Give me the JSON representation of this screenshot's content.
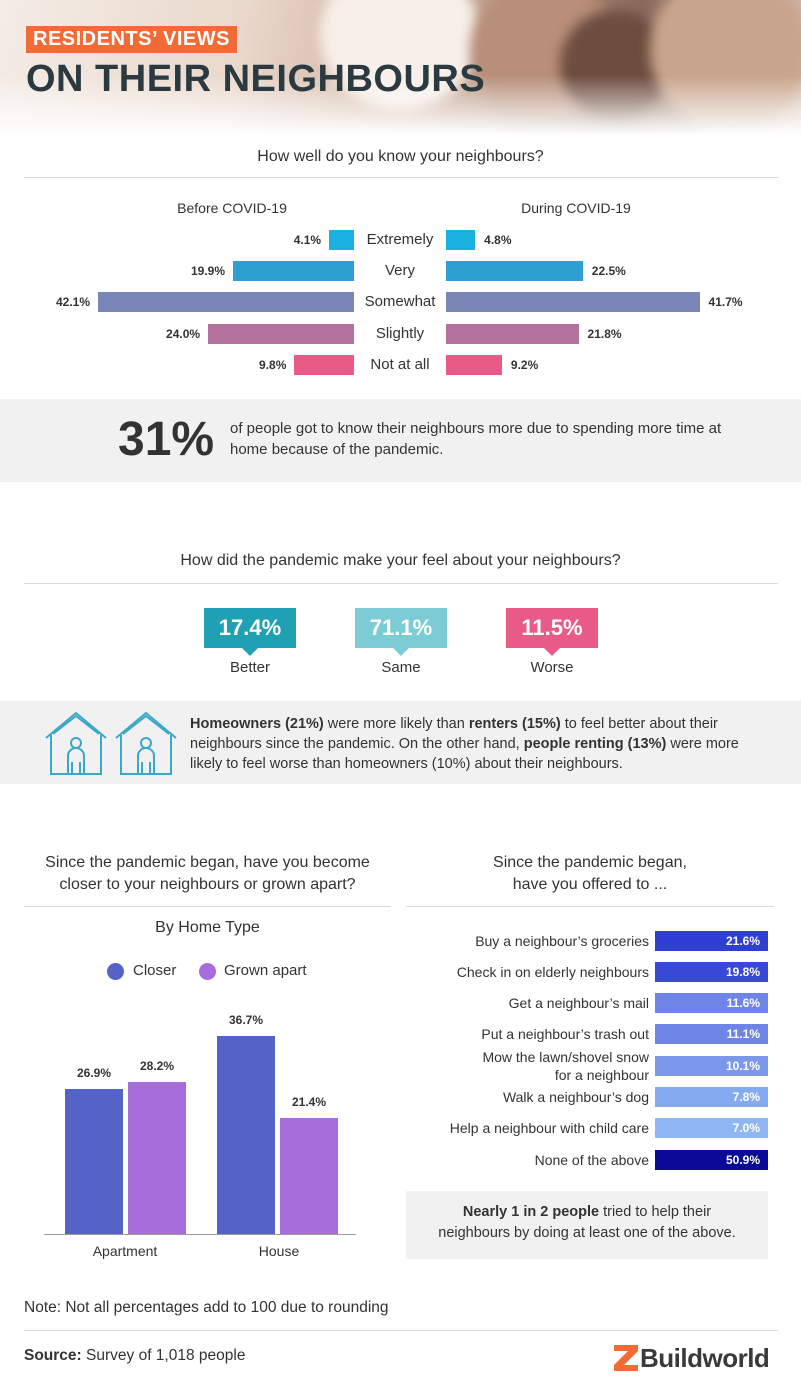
{
  "header": {
    "tag": "RESIDENTS’ VIEWS",
    "title": "ON THEIR NEIGHBOURS"
  },
  "know": {
    "question": "How well do you know your neighbours?",
    "before_label": "Before COVID-19",
    "during_label": "During COVID-19"
  },
  "stat": {
    "value": "31%",
    "text": "of people got to know their neighbours more due to spending more time at home because of the pandemic."
  },
  "feel": {
    "question": "How did the pandemic make your feel about your neighbours?",
    "items": [
      {
        "value": "17.4%",
        "label": "Better",
        "color": "#1fa1b3"
      },
      {
        "value": "71.1%",
        "label": "Same",
        "color": "#7cccd6"
      },
      {
        "value": "11.5%",
        "label": "Worse",
        "color": "#e85b87"
      }
    ]
  },
  "homeowners_note": {
    "b1": "Homeowners (21%)",
    "t1": " were more likely than ",
    "b2": "renters (15%)",
    "t2": " to feel better about their neighbours since the pandemic. On the other hand, ",
    "b3": "people renting (13%)",
    "t3": " were more likely to feel worse than homeowners (10%) about their neighbours."
  },
  "closer": {
    "question_line1": "Since the pandemic began, have you become",
    "question_line2": "closer to your neighbours or grown apart?",
    "subtitle": "By Home Type"
  },
  "offered": {
    "question_line1": "Since the pandemic began,",
    "question_line2": "have you offered to ...",
    "summary_bold": "Nearly 1 in 2 people",
    "summary_rest1": " tried to help their",
    "summary_rest2": "neighbours by doing at least one of the above."
  },
  "footer": {
    "note": "Note: Not all percentages add to 100 due to rounding",
    "source_label": "Source:",
    "source_text": " Survey of 1,018 people",
    "logo": "Buildworld"
  },
  "chart_data": [
    {
      "type": "bar",
      "categories": [
        "Extremely",
        "Very",
        "Somewhat",
        "Slightly",
        "Not at all"
      ],
      "series": [
        {
          "name": "Before COVID-19",
          "values": [
            4.1,
            19.9,
            42.1,
            24.0,
            9.8
          ]
        },
        {
          "name": "During COVID-19",
          "values": [
            4.8,
            22.5,
            41.7,
            21.8,
            9.2
          ]
        }
      ],
      "value_labels_before": [
        "4.1%",
        "19.9%",
        "42.1%",
        "24.0%",
        "9.8%"
      ],
      "value_labels_during": [
        "4.8%",
        "22.5%",
        "41.7%",
        "21.8%",
        "9.2%"
      ],
      "colors": [
        "#19b2e0",
        "#2e9fd1",
        "#7a86b8",
        "#b5729c",
        "#ea5a86"
      ],
      "orientation": "horizontal-butterfly",
      "title": "How well do you know your neighbours?",
      "xlim": [
        0,
        45
      ]
    },
    {
      "type": "bar",
      "title": "By Home Type",
      "categories": [
        "Apartment",
        "House"
      ],
      "series": [
        {
          "name": "Closer",
          "values": [
            26.9,
            36.7
          ],
          "labels": [
            "26.9%",
            "36.7%"
          ],
          "color": "#5563c9"
        },
        {
          "name": "Grown apart",
          "values": [
            28.2,
            21.4
          ],
          "labels": [
            "28.2%",
            "21.4%"
          ],
          "color": "#a76ddb"
        }
      ],
      "ylim": [
        0,
        40
      ],
      "legend": "top-center"
    },
    {
      "type": "bar",
      "orientation": "horizontal",
      "title": "Since the pandemic began, have you offered to ...",
      "categories": [
        "Buy a neighbour’s groceries",
        "Check in on elderly neighbours",
        "Get a neighbour’s mail",
        "Put a neighbour’s trash out",
        "Mow the lawn/shovel snow|for a neighbour",
        "Walk a neighbour’s dog",
        "Help a neighbour with child care",
        "None of the above"
      ],
      "values": [
        21.6,
        19.8,
        11.6,
        11.1,
        10.1,
        7.8,
        7.0,
        50.9
      ],
      "labels": [
        "21.6%",
        "19.8%",
        "11.6%",
        "11.1%",
        "10.1%",
        "7.8%",
        "7.0%",
        "50.9%"
      ],
      "colors": [
        "#2f3fd1",
        "#3a48d6",
        "#6e84e6",
        "#6e84e6",
        "#7c98ec",
        "#86aaf0",
        "#8fb6f2",
        "#0a0a96"
      ]
    }
  ]
}
